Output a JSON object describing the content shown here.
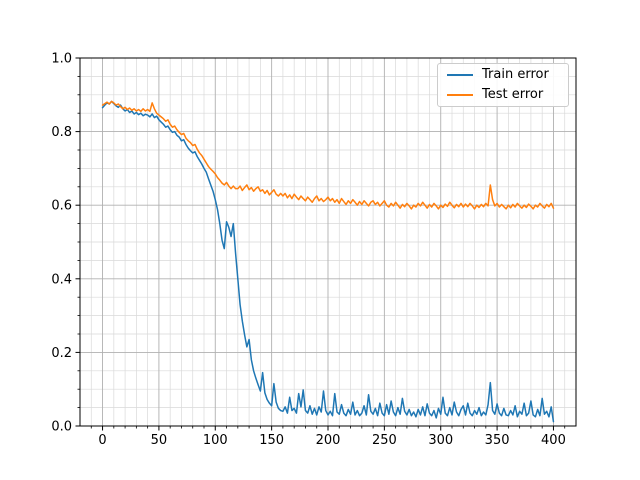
{
  "figure": {
    "background": "#ffffff",
    "spine_color": "#000000",
    "tick_label_color": "#000000",
    "grid_major_color": "#b0b0b0",
    "grid_minor_color": "#d9d9d9",
    "legend_border_color": "#cccccc"
  },
  "chart_data": {
    "type": "line",
    "title": "",
    "xlabel": "",
    "ylabel": "",
    "xlim": [
      -20,
      420
    ],
    "ylim": [
      0,
      1
    ],
    "x_major_ticks": [
      0,
      50,
      100,
      150,
      200,
      250,
      300,
      350,
      400
    ],
    "x_tick_labels": [
      "0",
      "50",
      "100",
      "150",
      "200",
      "250",
      "300",
      "350",
      "400"
    ],
    "x_minor_step": 10,
    "y_major_ticks": [
      0,
      0.2,
      0.4,
      0.6,
      0.8,
      1.0
    ],
    "y_tick_labels": [
      "0.0",
      "0.2",
      "0.4",
      "0.6",
      "0.8",
      "1.0"
    ],
    "y_minor_step": 0.05,
    "grid": "both",
    "legend_position": "upper-right",
    "series": [
      {
        "name": "Train error",
        "color": "#1f77b4",
        "x_start": 0,
        "x_step": 2,
        "values": [
          0.865,
          0.872,
          0.878,
          0.875,
          0.882,
          0.876,
          0.87,
          0.866,
          0.872,
          0.862,
          0.856,
          0.86,
          0.852,
          0.856,
          0.848,
          0.852,
          0.846,
          0.85,
          0.843,
          0.847,
          0.845,
          0.84,
          0.848,
          0.838,
          0.842,
          0.832,
          0.826,
          0.82,
          0.812,
          0.815,
          0.805,
          0.798,
          0.8,
          0.79,
          0.785,
          0.775,
          0.778,
          0.765,
          0.755,
          0.748,
          0.742,
          0.745,
          0.732,
          0.722,
          0.712,
          0.7,
          0.69,
          0.672,
          0.655,
          0.638,
          0.615,
          0.588,
          0.55,
          0.505,
          0.482,
          0.555,
          0.54,
          0.515,
          0.55,
          0.47,
          0.4,
          0.33,
          0.285,
          0.248,
          0.215,
          0.235,
          0.18,
          0.15,
          0.13,
          0.112,
          0.095,
          0.145,
          0.09,
          0.072,
          0.062,
          0.055,
          0.115,
          0.065,
          0.048,
          0.042,
          0.04,
          0.052,
          0.035,
          0.078,
          0.042,
          0.048,
          0.035,
          0.088,
          0.052,
          0.098,
          0.042,
          0.035,
          0.055,
          0.032,
          0.048,
          0.03,
          0.052,
          0.038,
          0.095,
          0.042,
          0.03,
          0.04,
          0.028,
          0.088,
          0.038,
          0.032,
          0.058,
          0.035,
          0.028,
          0.045,
          0.032,
          0.065,
          0.03,
          0.042,
          0.028,
          0.035,
          0.055,
          0.03,
          0.085,
          0.04,
          0.032,
          0.048,
          0.028,
          0.062,
          0.035,
          0.028,
          0.058,
          0.032,
          0.068,
          0.038,
          0.028,
          0.05,
          0.032,
          0.075,
          0.04,
          0.03,
          0.045,
          0.028,
          0.038,
          0.025,
          0.045,
          0.03,
          0.052,
          0.028,
          0.06,
          0.035,
          0.028,
          0.042,
          0.022,
          0.048,
          0.032,
          0.078,
          0.035,
          0.028,
          0.05,
          0.03,
          0.065,
          0.038,
          0.028,
          0.045,
          0.055,
          0.03,
          0.062,
          0.035,
          0.028,
          0.042,
          0.032,
          0.05,
          0.028,
          0.038,
          0.03,
          0.058,
          0.118,
          0.042,
          0.032,
          0.06,
          0.035,
          0.028,
          0.048,
          0.03,
          0.028,
          0.042,
          0.03,
          0.055,
          0.025,
          0.04,
          0.032,
          0.062,
          0.028,
          0.035,
          0.068,
          0.03,
          0.025,
          0.045,
          0.028,
          0.075,
          0.032,
          0.04,
          0.025,
          0.052,
          0.012
        ]
      },
      {
        "name": "Test error",
        "color": "#ff7f0e",
        "x_start": 0,
        "x_step": 2,
        "values": [
          0.872,
          0.876,
          0.88,
          0.875,
          0.882,
          0.878,
          0.872,
          0.875,
          0.868,
          0.862,
          0.866,
          0.86,
          0.864,
          0.858,
          0.862,
          0.856,
          0.86,
          0.855,
          0.862,
          0.856,
          0.86,
          0.855,
          0.878,
          0.862,
          0.85,
          0.845,
          0.84,
          0.835,
          0.828,
          0.832,
          0.82,
          0.812,
          0.815,
          0.805,
          0.798,
          0.792,
          0.795,
          0.782,
          0.775,
          0.77,
          0.762,
          0.765,
          0.752,
          0.742,
          0.735,
          0.725,
          0.715,
          0.705,
          0.698,
          0.692,
          0.685,
          0.675,
          0.668,
          0.66,
          0.655,
          0.662,
          0.652,
          0.645,
          0.652,
          0.645,
          0.645,
          0.652,
          0.64,
          0.648,
          0.655,
          0.642,
          0.648,
          0.638,
          0.645,
          0.65,
          0.638,
          0.642,
          0.632,
          0.64,
          0.628,
          0.635,
          0.642,
          0.63,
          0.625,
          0.632,
          0.625,
          0.632,
          0.62,
          0.628,
          0.618,
          0.63,
          0.622,
          0.615,
          0.625,
          0.618,
          0.612,
          0.622,
          0.615,
          0.608,
          0.618,
          0.625,
          0.612,
          0.618,
          0.61,
          0.615,
          0.622,
          0.612,
          0.618,
          0.608,
          0.615,
          0.605,
          0.618,
          0.61,
          0.602,
          0.612,
          0.605,
          0.615,
          0.608,
          0.6,
          0.61,
          0.602,
          0.612,
          0.605,
          0.598,
          0.608,
          0.612,
          0.602,
          0.608,
          0.598,
          0.605,
          0.612,
          0.6,
          0.595,
          0.605,
          0.598,
          0.608,
          0.6,
          0.592,
          0.602,
          0.596,
          0.605,
          0.598,
          0.59,
          0.6,
          0.595,
          0.605,
          0.598,
          0.608,
          0.6,
          0.592,
          0.602,
          0.595,
          0.605,
          0.598,
          0.59,
          0.6,
          0.594,
          0.603,
          0.597,
          0.608,
          0.6,
          0.593,
          0.602,
          0.596,
          0.605,
          0.595,
          0.603,
          0.596,
          0.605,
          0.598,
          0.59,
          0.6,
          0.594,
          0.602,
          0.596,
          0.605,
          0.598,
          0.655,
          0.615,
          0.598,
          0.605,
          0.595,
          0.602,
          0.596,
          0.59,
          0.6,
          0.593,
          0.602,
          0.595,
          0.605,
          0.598,
          0.592,
          0.6,
          0.594,
          0.603,
          0.597,
          0.59,
          0.6,
          0.595,
          0.605,
          0.598,
          0.592,
          0.602,
          0.596,
          0.605,
          0.592
        ]
      }
    ]
  }
}
